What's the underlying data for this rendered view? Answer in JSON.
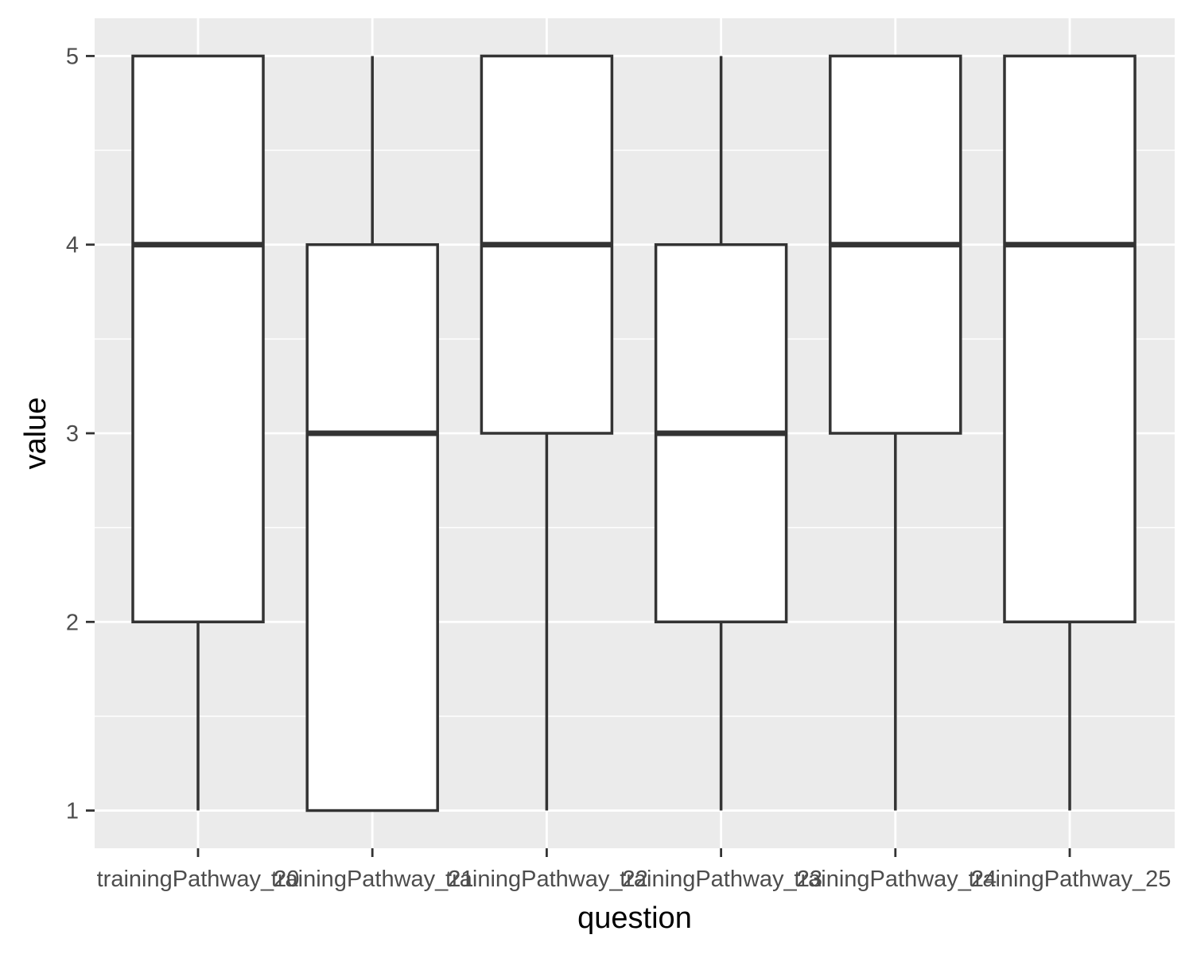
{
  "chart_data": {
    "type": "boxplot",
    "xlabel": "question",
    "ylabel": "value",
    "ylim": [
      0.8,
      5.2
    ],
    "y_ticks": [
      1,
      2,
      3,
      4,
      5
    ],
    "y_tick_labels": [
      "1",
      "2",
      "3",
      "4",
      "5"
    ],
    "grid": true,
    "categories": [
      "trainingPathway_20",
      "trainingPathway_21",
      "trainingPathway_22",
      "trainingPathway_23",
      "trainingPathway_24",
      "trainingPathway_25"
    ],
    "boxes": [
      {
        "category": "trainingPathway_20",
        "min": 1,
        "q1": 2,
        "median": 4,
        "q3": 5,
        "max": 5
      },
      {
        "category": "trainingPathway_21",
        "min": 1,
        "q1": 1,
        "median": 3,
        "q3": 4,
        "max": 5
      },
      {
        "category": "trainingPathway_22",
        "min": 1,
        "q1": 3,
        "median": 4,
        "q3": 5,
        "max": 5
      },
      {
        "category": "trainingPathway_23",
        "min": 1,
        "q1": 2,
        "median": 3,
        "q3": 4,
        "max": 5
      },
      {
        "category": "trainingPathway_24",
        "min": 1,
        "q1": 3,
        "median": 4,
        "q3": 5,
        "max": 5
      },
      {
        "category": "trainingPathway_25",
        "min": 1,
        "q1": 2,
        "median": 4,
        "q3": 5,
        "max": 5
      }
    ],
    "colors": {
      "panel_background": "#ebebeb",
      "grid": "#ffffff",
      "box_fill": "#ffffff",
      "box_stroke": "#333333",
      "tick_text": "#4d4d4d",
      "title_text": "#000000"
    }
  }
}
